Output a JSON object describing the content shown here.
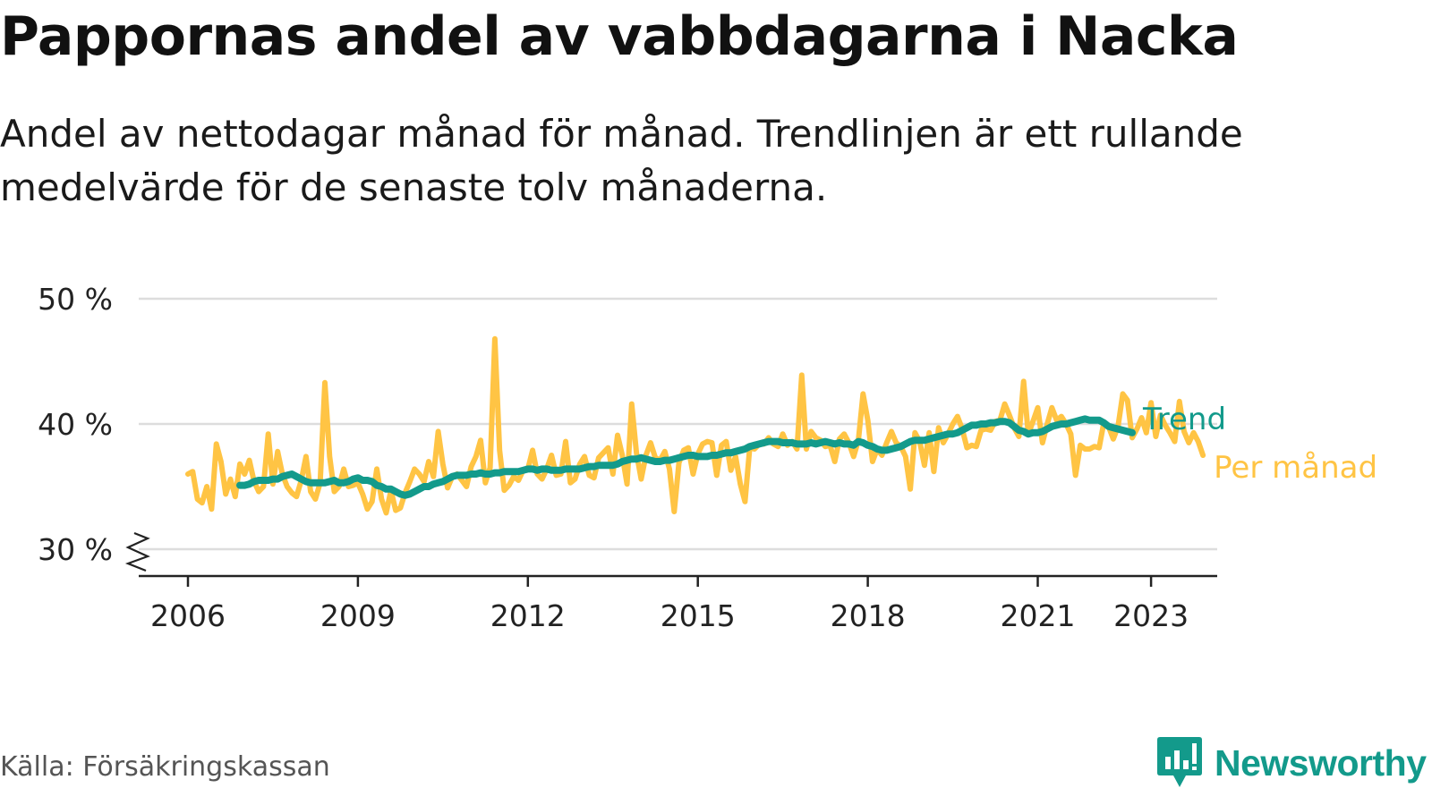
{
  "title": "Pappornas andel av vabbdagarna i Nacka",
  "subtitle": "Andel av nettodagar månad för månad. Trendlinjen är ett rullande medelvärde för de senaste tolv månaderna.",
  "source": "Källa: Försäkringskassan",
  "brand": "Newsworthy",
  "colors": {
    "monthly": "#ffc444",
    "trend": "#139a8b",
    "grid": "#dddddd",
    "axis": "#222222",
    "brand": "#139a8b"
  },
  "icons": {
    "logo": "bar-chart-speech-bubble-icon",
    "axis_break": "zigzag-axis-break-icon"
  },
  "chart_data": {
    "type": "line",
    "xlabel": "",
    "ylabel": "",
    "x_ticks": [
      "2006",
      "2009",
      "2012",
      "2015",
      "2018",
      "2021",
      "2023"
    ],
    "y_ticks": [
      "30 %",
      "40 %",
      "50 %"
    ],
    "ylim": [
      30,
      50
    ],
    "y_axis_break": true,
    "grid": true,
    "legend": "inline labels at line ends (right)",
    "series": [
      {
        "name": "Per månad",
        "start": "2006-01",
        "values": [
          36.0,
          36.2,
          34.0,
          33.7,
          35.0,
          33.2,
          38.4,
          37.0,
          34.4,
          35.6,
          34.2,
          36.8,
          36.0,
          37.1,
          35.4,
          34.6,
          35.0,
          39.2,
          35.2,
          37.8,
          36.0,
          35.0,
          34.5,
          34.2,
          35.5,
          37.4,
          34.6,
          34.0,
          35.3,
          43.3,
          37.4,
          34.6,
          35.0,
          36.4,
          35.0,
          35.1,
          35.3,
          34.4,
          33.2,
          33.8,
          36.4,
          34.0,
          32.9,
          34.7,
          33.1,
          33.3,
          34.5,
          35.4,
          36.4,
          36.0,
          35.4,
          37.0,
          35.8,
          39.4,
          36.8,
          34.9,
          35.8,
          36.0,
          35.5,
          35.0,
          36.6,
          37.4,
          38.7,
          35.3,
          36.5,
          46.8,
          37.9,
          34.7,
          35.1,
          35.8,
          35.5,
          36.3,
          36.4,
          37.9,
          36.0,
          35.6,
          36.4,
          37.5,
          35.9,
          36.0,
          38.6,
          35.3,
          35.6,
          36.8,
          37.4,
          35.9,
          35.7,
          37.3,
          37.7,
          38.1,
          36.0,
          39.1,
          37.5,
          35.2,
          41.6,
          37.7,
          35.6,
          37.5,
          38.5,
          37.3,
          37.1,
          37.8,
          36.4,
          33.0,
          36.9,
          37.9,
          38.1,
          36.0,
          37.6,
          38.4,
          38.6,
          38.5,
          35.9,
          38.3,
          38.6,
          36.3,
          37.4,
          35.2,
          33.8,
          38.1,
          38.0,
          38.4,
          38.4,
          38.9,
          38.4,
          38.2,
          39.2,
          38.3,
          38.6,
          38.0,
          43.9,
          38.0,
          39.4,
          38.9,
          38.7,
          38.2,
          38.3,
          37.0,
          38.8,
          39.2,
          38.5,
          37.4,
          38.7,
          42.4,
          40.3,
          37.0,
          38.0,
          37.5,
          38.5,
          39.4,
          38.5,
          38.2,
          37.4,
          34.8,
          39.3,
          38.6,
          36.7,
          39.3,
          36.2,
          39.7,
          38.5,
          39.2,
          40.0,
          40.6,
          39.6,
          38.1,
          38.3,
          38.2,
          39.5,
          39.6,
          39.5,
          40.2,
          40.3,
          41.6,
          40.7,
          39.7,
          39.0,
          43.4,
          39.2,
          40.2,
          41.3,
          38.5,
          40.0,
          41.3,
          40.3,
          40.6,
          40.0,
          39.2,
          35.9,
          38.3,
          38.0,
          38.0,
          38.2,
          38.1,
          40.1,
          39.8,
          38.8,
          39.8,
          42.4,
          41.9,
          38.9,
          39.6,
          40.5,
          39.3,
          41.7,
          39.0,
          40.7,
          39.9,
          39.3,
          38.6,
          41.8,
          39.4,
          38.5,
          39.3,
          38.6,
          37.5
        ]
      },
      {
        "name": "Trend",
        "start": "2006-12",
        "values": [
          35.1,
          35.1,
          35.2,
          35.4,
          35.5,
          35.5,
          35.5,
          35.6,
          35.6,
          35.8,
          35.9,
          36.0,
          35.8,
          35.6,
          35.4,
          35.3,
          35.3,
          35.3,
          35.3,
          35.4,
          35.5,
          35.3,
          35.3,
          35.4,
          35.6,
          35.7,
          35.5,
          35.5,
          35.4,
          35.1,
          35.0,
          34.8,
          34.8,
          34.6,
          34.4,
          34.3,
          34.4,
          34.6,
          34.8,
          35.0,
          35.0,
          35.2,
          35.3,
          35.4,
          35.6,
          35.8,
          35.9,
          35.9,
          35.9,
          36.0,
          36.0,
          36.1,
          36.0,
          36.0,
          36.1,
          36.1,
          36.2,
          36.2,
          36.2,
          36.2,
          36.3,
          36.4,
          36.4,
          36.3,
          36.4,
          36.4,
          36.3,
          36.3,
          36.3,
          36.4,
          36.4,
          36.4,
          36.4,
          36.5,
          36.6,
          36.6,
          36.7,
          36.7,
          36.7,
          36.7,
          36.8,
          37.0,
          37.1,
          37.2,
          37.2,
          37.3,
          37.2,
          37.1,
          37.0,
          37.0,
          37.1,
          37.1,
          37.2,
          37.3,
          37.4,
          37.5,
          37.5,
          37.4,
          37.4,
          37.4,
          37.5,
          37.5,
          37.6,
          37.7,
          37.7,
          37.8,
          37.9,
          38.0,
          38.2,
          38.3,
          38.4,
          38.5,
          38.6,
          38.6,
          38.6,
          38.5,
          38.5,
          38.5,
          38.4,
          38.4,
          38.4,
          38.5,
          38.4,
          38.5,
          38.6,
          38.5,
          38.4,
          38.5,
          38.4,
          38.4,
          38.3,
          38.6,
          38.5,
          38.3,
          38.2,
          38.0,
          37.9,
          37.9,
          38.0,
          38.1,
          38.2,
          38.4,
          38.6,
          38.7,
          38.7,
          38.7,
          38.8,
          38.9,
          39.0,
          39.1,
          39.2,
          39.2,
          39.3,
          39.5,
          39.7,
          39.9,
          39.9,
          40.0,
          40.0,
          40.1,
          40.1,
          40.2,
          40.2,
          40.1,
          39.8,
          39.5,
          39.4,
          39.2,
          39.3,
          39.3,
          39.4,
          39.6,
          39.8,
          39.9,
          40.0,
          40.0,
          40.1,
          40.2,
          40.3,
          40.4,
          40.3,
          40.3,
          40.3,
          40.1,
          39.8,
          39.7,
          39.6,
          39.5,
          39.4,
          39.3
        ]
      }
    ]
  }
}
